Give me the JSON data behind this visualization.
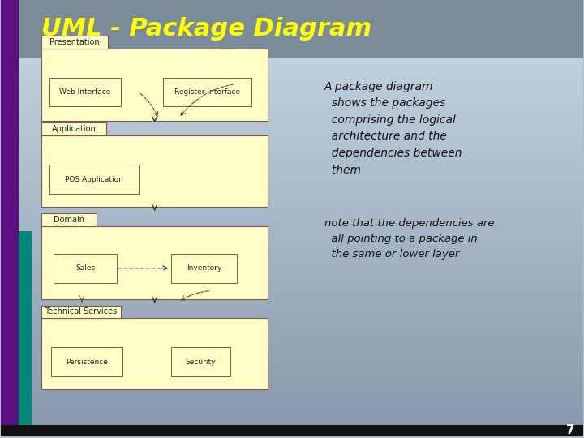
{
  "title": "UML - Package Diagram",
  "title_color": "#FFFF00",
  "title_fontsize": 22,
  "bg_top": "#8a9aaa",
  "bg_bottom": "#c0d0dc",
  "right_text1": "A package diagram\n  shows the packages\n  comprising the logical\n  architecture and the\n  dependencies between\n  them",
  "right_text2": "note that the dependencies are\n  all pointing to a package in\n  the same or lower layer",
  "page_num": "7",
  "package_fill": "#ffffc8",
  "package_edge": "#885544",
  "inner_fill": "#ffffc8",
  "inner_edge": "#885544",
  "purple_bar": "#5a1080",
  "teal_bar": "#008878",
  "black_bar": "#111111"
}
